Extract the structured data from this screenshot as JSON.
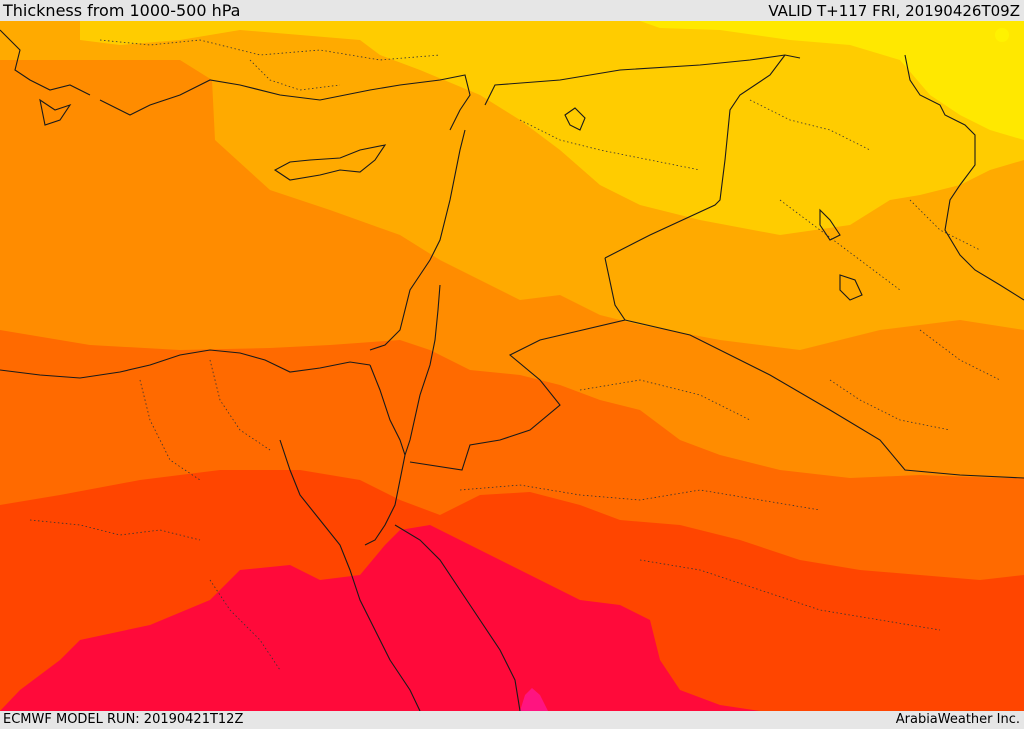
{
  "header": {
    "title": "Thickness from 1000-500 hPa",
    "valid": "VALID T+117 FRI, 20190426T09Z"
  },
  "footer": {
    "model_run": "ECMWF MODEL RUN: 20190421T12Z",
    "credit": "ArabiaWeather Inc."
  },
  "map": {
    "colors": {
      "yellow": "#ffe800",
      "yellow_orange": "#ffcc00",
      "light_orange": "#ffaa00",
      "orange": "#ff8c00",
      "dark_orange": "#ff6a00",
      "red_orange": "#ff4500",
      "crimson": "#ff0a3a",
      "magenta": "#ff1480",
      "border": "#1a1a1a"
    }
  }
}
